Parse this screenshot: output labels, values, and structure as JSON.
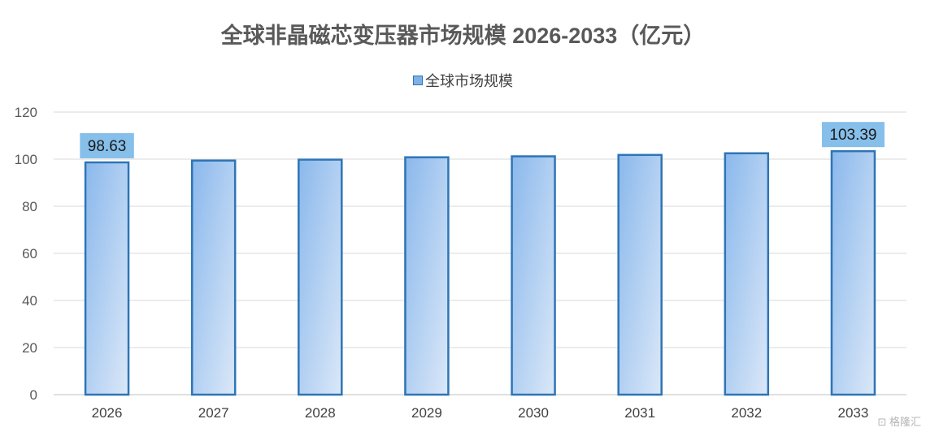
{
  "chart_data": {
    "type": "bar",
    "title": "全球非晶磁芯变压器市场规模 2026-2033（亿元）",
    "categories": [
      "2026",
      "2027",
      "2028",
      "2029",
      "2030",
      "2031",
      "2032",
      "2033"
    ],
    "series": [
      {
        "name": "全球市场规模",
        "values": [
          98.63,
          99.4,
          99.8,
          100.8,
          101.2,
          101.8,
          102.5,
          103.39
        ],
        "data_labels": {
          "0": "98.63",
          "7": "103.39"
        }
      }
    ],
    "yticks": [
      "0",
      "20",
      "40",
      "60",
      "80",
      "100",
      "120"
    ],
    "ylim": [
      0,
      120
    ],
    "grid": true,
    "legend_position": "top-center",
    "colors": {
      "bar_fill_top": "#8ab8ec",
      "bar_fill_bottom": "#dbe8f8",
      "bar_border": "#2e75b6",
      "label_bg": "#86bfea"
    }
  },
  "watermark": "格隆汇"
}
